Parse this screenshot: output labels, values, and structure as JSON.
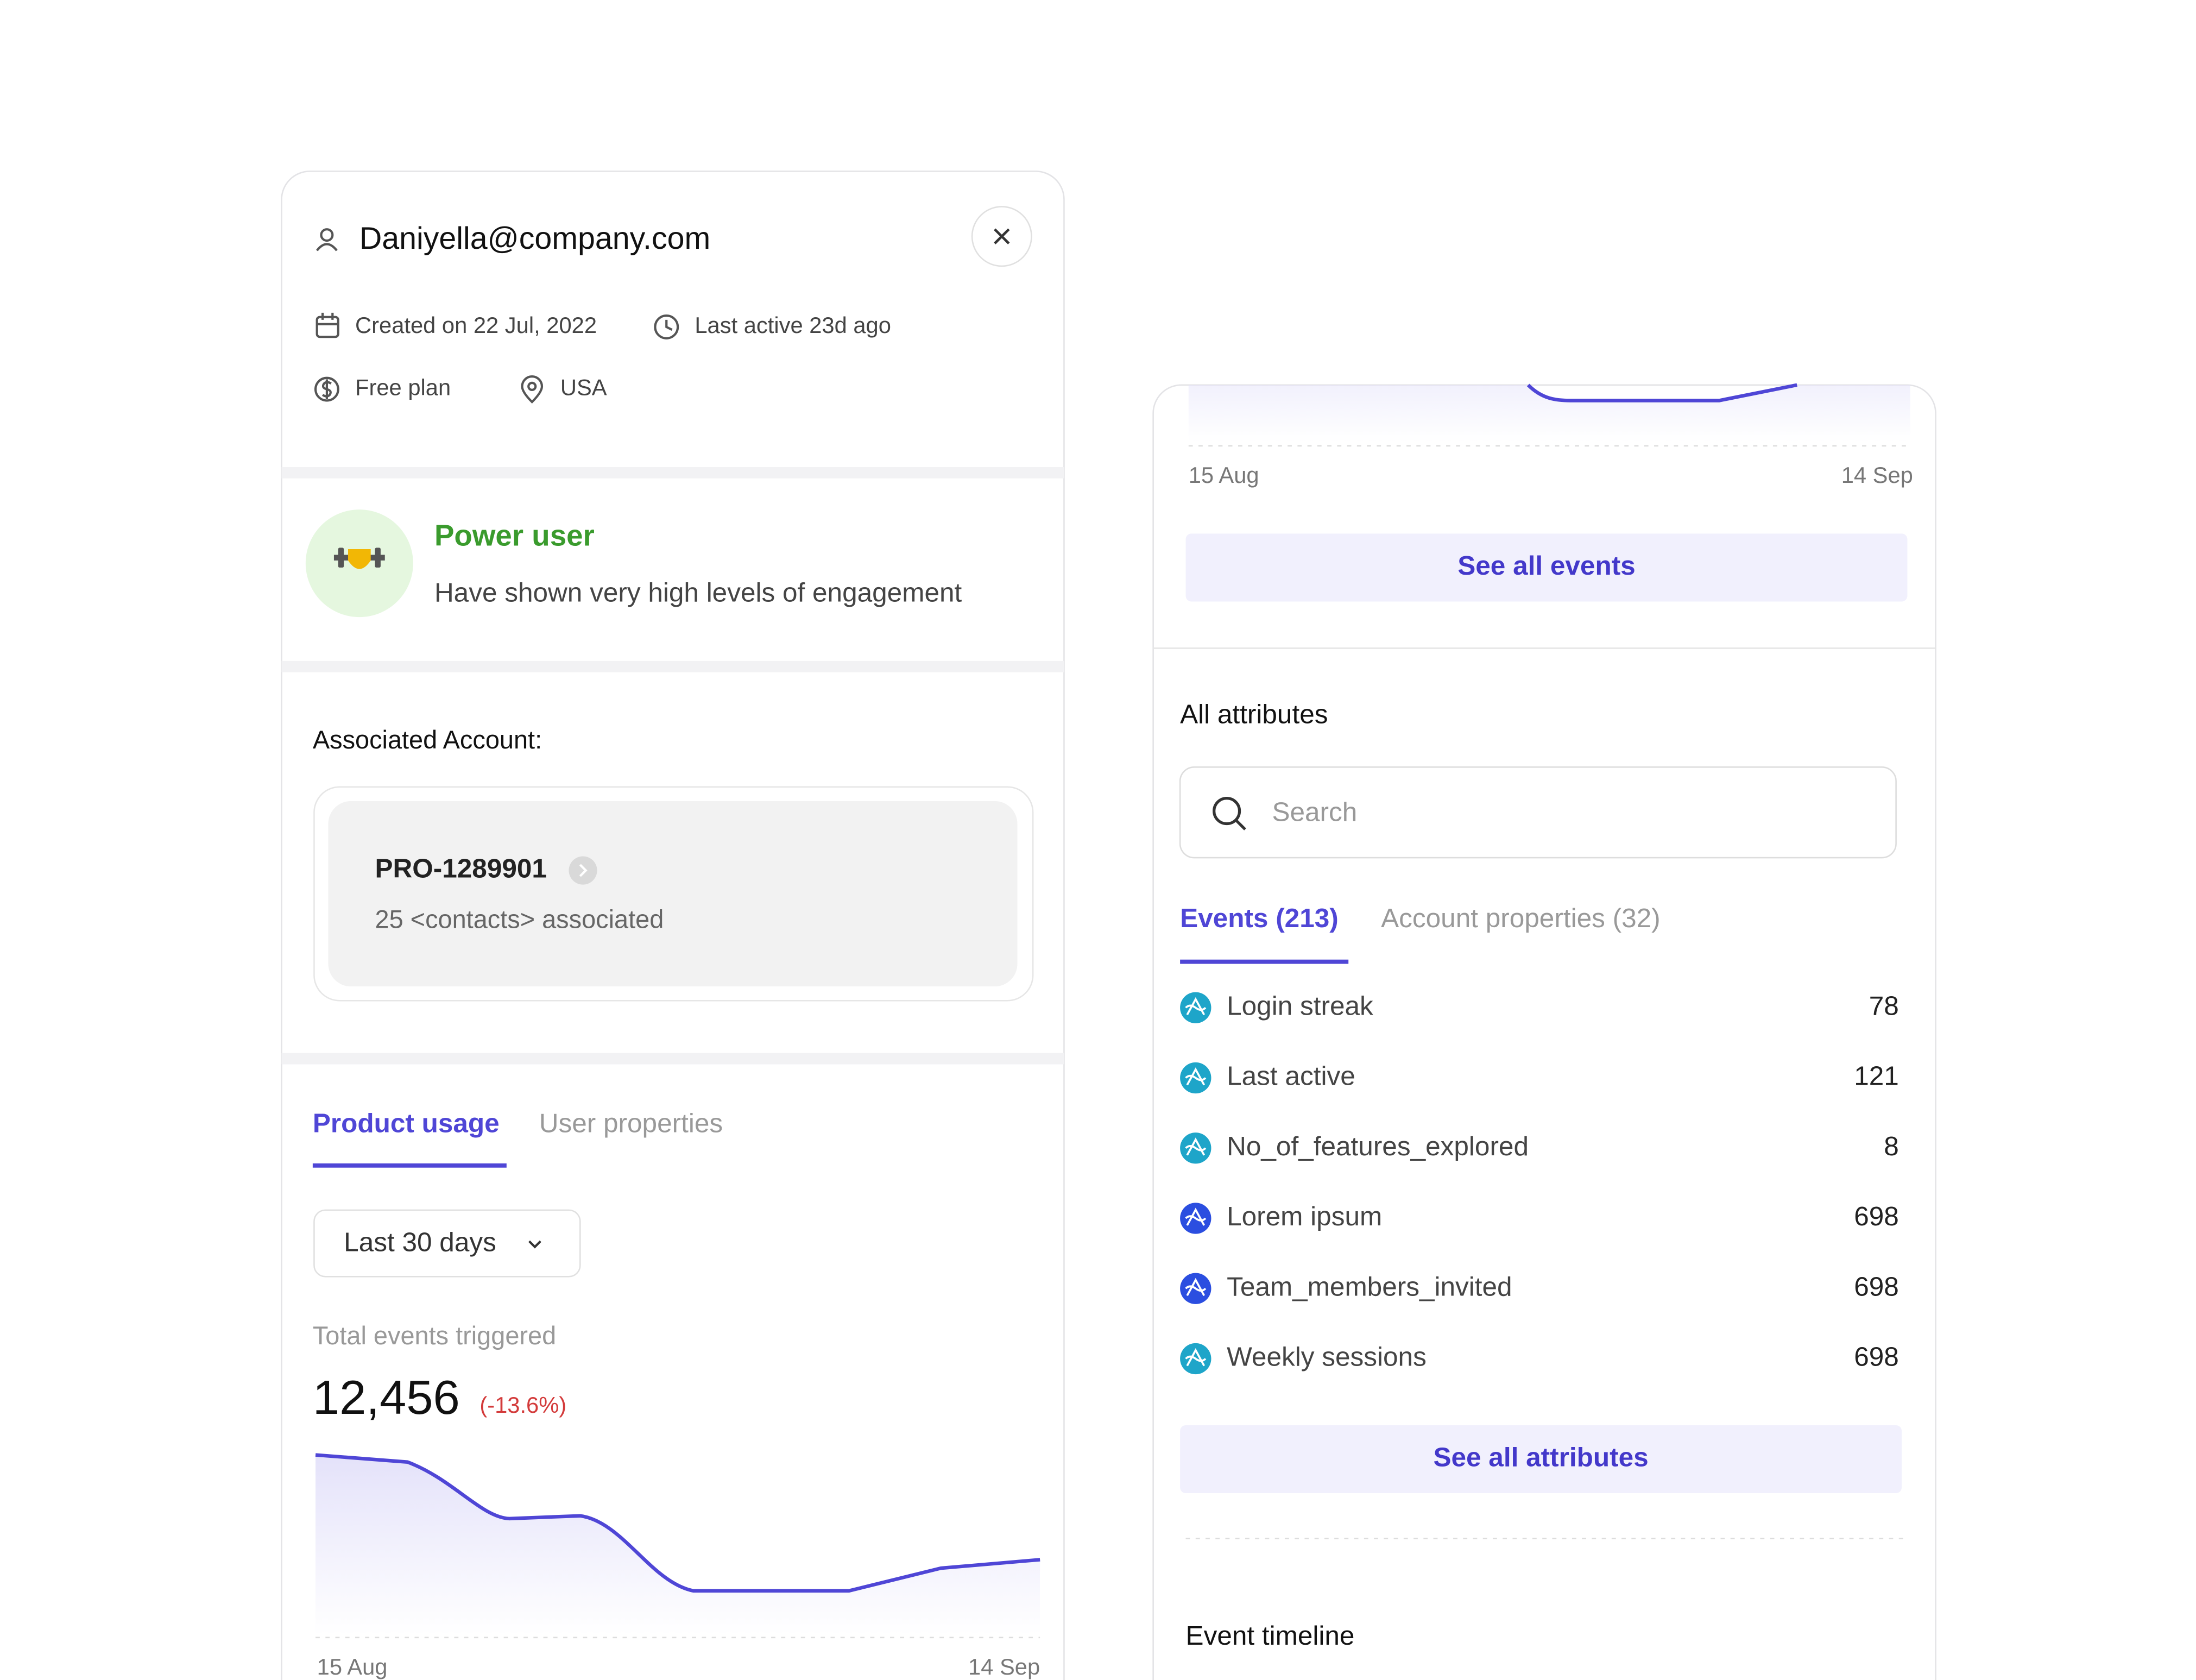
{
  "user": {
    "email": "Daniyella@company.com",
    "created": "Created on 22 Jul, 2022",
    "last_active": "Last active 23d ago",
    "plan": "Free plan",
    "location": "USA"
  },
  "badge": {
    "title": "Power user",
    "description": "Have shown very high levels of engagement"
  },
  "account": {
    "heading": "Associated Account:",
    "id": "PRO-1289901",
    "contacts": "25 <contacts> associated"
  },
  "usage": {
    "tabs": [
      "Product usage",
      "User properties"
    ],
    "range": "Last 30 days",
    "metric_label": "Total events triggered",
    "metric_value": "12,456",
    "metric_change": "(-13.6%)",
    "chart_start": "15 Aug",
    "chart_end": "14 Sep"
  },
  "attributes": {
    "chart_start": "15 Aug",
    "chart_end": "14 Sep",
    "see_events": "See all events",
    "heading": "All attributes",
    "search_placeholder": "Search",
    "tabs": [
      "Events (213)",
      "Account properties (32)"
    ],
    "rows": [
      {
        "name": "Login streak",
        "value": "78",
        "color": "#1ea5c9"
      },
      {
        "name": "Last active",
        "value": "121",
        "color": "#1ea5c9"
      },
      {
        "name": "No_of_features_explored",
        "value": "8",
        "color": "#1ea5c9"
      },
      {
        "name": "Lorem ipsum",
        "value": "698",
        "color": "#2b4ee0"
      },
      {
        "name": "Team_members_invited",
        "value": "698",
        "color": "#2b4ee0"
      },
      {
        "name": "Weekly sessions",
        "value": "698",
        "color": "#1ea5c9"
      }
    ],
    "see_attributes": "See all attributes",
    "timeline": "Event timeline"
  }
}
